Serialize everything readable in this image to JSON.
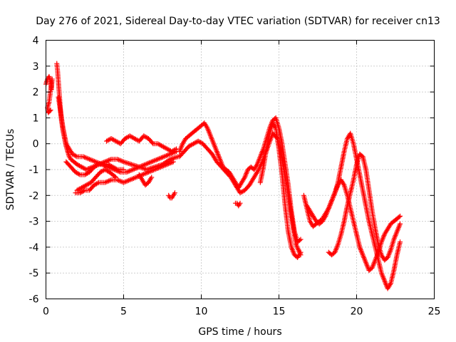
{
  "chart_data": {
    "type": "scatter",
    "title": "Day 276 of 2021, Sidereal Day-to-day VTEC variation (SDTVAR) for receiver cn13",
    "xlabel": "GPS time / hours",
    "ylabel": "SDTVAR / TECUs",
    "xlim": [
      0,
      25
    ],
    "ylim": [
      -6,
      4
    ],
    "xticks": [
      "0",
      "5",
      "10",
      "15",
      "20",
      "25"
    ],
    "yticks": [
      "-6",
      "-5",
      "-4",
      "-3",
      "-2",
      "-1",
      "0",
      "1",
      "2",
      "3",
      "4"
    ],
    "grid": true,
    "marker": "+",
    "color": "#ff0000",
    "series": [
      {
        "x": [
          0.0,
          0.1,
          0.2,
          0.3,
          0.35,
          0.4,
          0.2,
          0.1,
          0.15,
          0.3
        ],
        "y": [
          2.3,
          2.5,
          2.6,
          2.4,
          2.1,
          2.5,
          1.6,
          1.4,
          1.2,
          1.3
        ]
      },
      {
        "x": [
          0.7,
          0.75,
          0.8,
          0.85,
          0.9,
          0.95,
          1.0,
          1.1,
          1.2,
          1.3,
          1.4,
          1.5,
          1.6,
          1.8,
          2.0,
          2.3,
          2.6,
          3.0,
          3.4,
          3.8,
          4.2,
          4.6,
          5.0,
          5.5,
          6.0,
          6.5,
          7.0,
          7.5,
          8.0,
          8.5
        ],
        "y": [
          3.1,
          2.8,
          2.4,
          2.0,
          1.6,
          1.2,
          0.9,
          0.5,
          0.2,
          -0.1,
          -0.3,
          -0.5,
          -0.6,
          -0.7,
          -0.8,
          -0.9,
          -1.0,
          -0.9,
          -0.8,
          -0.7,
          -0.6,
          -0.6,
          -0.7,
          -0.8,
          -0.9,
          -1.0,
          -0.9,
          -0.8,
          -0.6,
          -0.5
        ]
      },
      {
        "x": [
          0.8,
          0.9,
          1.0,
          1.1,
          1.2,
          1.3,
          1.5,
          1.7,
          2.0,
          2.4,
          2.8,
          3.2,
          3.6,
          4.0,
          4.4,
          4.8,
          5.2,
          5.6,
          6.0,
          6.4,
          6.8,
          7.2,
          7.6,
          8.0,
          8.4
        ],
        "y": [
          1.8,
          1.4,
          1.0,
          0.6,
          0.3,
          0.0,
          -0.2,
          -0.4,
          -0.5,
          -0.5,
          -0.6,
          -0.7,
          -0.8,
          -0.9,
          -1.0,
          -1.1,
          -1.1,
          -1.0,
          -0.9,
          -0.8,
          -0.7,
          -0.6,
          -0.5,
          -0.4,
          -0.3
        ]
      },
      {
        "x": [
          1.3,
          1.6,
          1.9,
          2.2,
          2.5,
          2.8,
          3.1,
          3.4,
          3.7,
          4.0,
          4.3,
          4.6,
          5.0
        ],
        "y": [
          -0.7,
          -0.9,
          -1.1,
          -1.2,
          -1.2,
          -1.1,
          -0.9,
          -0.8,
          -0.8,
          -0.8,
          -0.9,
          -1.0,
          -1.0
        ]
      },
      {
        "x": [
          1.9,
          2.2,
          2.5,
          2.8,
          3.1,
          3.4,
          3.8,
          4.2,
          4.6,
          5.0,
          5.4,
          5.8,
          6.2,
          6.6,
          7.0,
          7.4,
          7.8,
          8.2
        ],
        "y": [
          -1.9,
          -1.9,
          -1.8,
          -1.8,
          -1.6,
          -1.5,
          -1.5,
          -1.4,
          -1.4,
          -1.5,
          -1.4,
          -1.3,
          -1.2,
          -1.1,
          -1.0,
          -0.9,
          -0.8,
          -0.7
        ]
      },
      {
        "x": [
          2.0,
          2.3,
          2.6,
          2.9,
          3.2,
          3.5,
          3.8,
          4.1,
          4.5
        ],
        "y": [
          -1.8,
          -1.7,
          -1.6,
          -1.5,
          -1.3,
          -1.1,
          -1.0,
          -1.1,
          -1.3
        ]
      },
      {
        "x": [
          3.9,
          4.2,
          4.5,
          4.8,
          5.1,
          5.4,
          5.7,
          6.0,
          6.3,
          6.6,
          6.9,
          7.2,
          7.5,
          7.8,
          8.1,
          8.4
        ],
        "y": [
          0.1,
          0.2,
          0.1,
          0.0,
          0.2,
          0.3,
          0.2,
          0.1,
          0.3,
          0.2,
          0.0,
          0.0,
          -0.1,
          -0.2,
          -0.3,
          -0.2
        ]
      },
      {
        "x": [
          6.0,
          6.2,
          6.4,
          6.6,
          6.8
        ],
        "y": [
          -1.2,
          -1.4,
          -1.6,
          -1.5,
          -1.3
        ]
      },
      {
        "x": [
          7.9,
          8.0,
          8.1,
          8.2,
          8.3
        ],
        "y": [
          -2.0,
          -2.1,
          -2.1,
          -2.0,
          -1.9
        ]
      },
      {
        "x": [
          8.6,
          8.8,
          9.0,
          9.2,
          9.4,
          9.6,
          9.8,
          10.0,
          10.2,
          10.4,
          10.6,
          10.8,
          11.0,
          11.2,
          11.4,
          11.6,
          11.8,
          12.0,
          12.2,
          12.4,
          12.6,
          12.8,
          13.0,
          13.2,
          13.4,
          13.6,
          13.8,
          14.0,
          14.2,
          14.4,
          14.6,
          14.8,
          15.0,
          15.2,
          15.4,
          15.6,
          15.8,
          16.0,
          16.2,
          16.4
        ],
        "y": [
          -0.3,
          0.0,
          0.2,
          0.3,
          0.4,
          0.5,
          0.6,
          0.7,
          0.8,
          0.6,
          0.3,
          0.0,
          -0.3,
          -0.6,
          -0.9,
          -1.0,
          -1.1,
          -1.3,
          -1.5,
          -1.7,
          -1.5,
          -1.3,
          -1.0,
          -0.9,
          -1.0,
          -0.8,
          -0.5,
          -0.2,
          0.2,
          0.6,
          0.9,
          1.0,
          0.6,
          0.0,
          -0.8,
          -1.6,
          -2.6,
          -3.4,
          -3.8,
          -3.7
        ]
      },
      {
        "x": [
          8.6,
          8.9,
          9.2,
          9.5,
          9.8,
          10.1,
          10.4,
          10.7,
          11.0,
          11.3,
          11.6,
          11.9,
          12.2,
          12.5,
          12.8,
          13.1,
          13.4,
          13.7,
          14.0,
          14.3,
          14.6,
          14.9,
          15.2,
          15.5,
          15.8,
          16.1,
          16.4
        ],
        "y": [
          -0.5,
          -0.3,
          -0.1,
          0.0,
          0.1,
          0.0,
          -0.2,
          -0.4,
          -0.7,
          -0.9,
          -1.1,
          -1.3,
          -1.6,
          -1.9,
          -1.8,
          -1.6,
          -1.3,
          -1.0,
          -0.6,
          -0.1,
          0.4,
          0.2,
          -0.6,
          -1.6,
          -2.8,
          -3.9,
          -4.3
        ]
      },
      {
        "x": [
          12.2,
          12.3,
          12.4,
          12.5
        ],
        "y": [
          -2.3,
          -2.3,
          -2.4,
          -2.3
        ]
      },
      {
        "x": [
          13.8,
          14.0,
          14.2,
          14.4,
          14.6,
          14.8,
          15.0,
          15.2,
          15.4,
          15.6,
          15.8,
          16.0,
          16.2,
          16.4
        ],
        "y": [
          -1.5,
          -0.9,
          -0.2,
          0.4,
          0.8,
          0.6,
          -0.2,
          -1.2,
          -2.4,
          -3.4,
          -4.0,
          -4.3,
          -4.4,
          -4.2
        ]
      },
      {
        "x": [
          16.6,
          16.8,
          17.0,
          17.2,
          17.4,
          17.6,
          17.8,
          18.0,
          18.2,
          18.4,
          18.6,
          18.8,
          19.0,
          19.2,
          19.4,
          19.6,
          19.8,
          20.0,
          20.2,
          20.4,
          20.6,
          20.8,
          21.0,
          21.2,
          21.4,
          21.6,
          21.8,
          22.0,
          22.2,
          22.4,
          22.6,
          22.8
        ],
        "y": [
          -2.0,
          -2.5,
          -3.0,
          -3.2,
          -3.1,
          -3.0,
          -2.9,
          -2.7,
          -2.5,
          -2.2,
          -1.9,
          -1.6,
          -1.4,
          -1.6,
          -2.0,
          -2.5,
          -3.0,
          -3.5,
          -4.0,
          -4.3,
          -4.6,
          -4.9,
          -4.8,
          -4.5,
          -4.2,
          -3.8,
          -3.5,
          -3.3,
          -3.1,
          -3.0,
          -2.9,
          -2.8
        ]
      },
      {
        "x": [
          16.8,
          17.0,
          17.2,
          17.4,
          17.6,
          17.8,
          18.0,
          18.2,
          18.4,
          18.6,
          18.8,
          19.0,
          19.2,
          19.4,
          19.6,
          19.8,
          20.0,
          20.2,
          20.4,
          20.6,
          20.8,
          21.0,
          21.2,
          21.4,
          21.6,
          21.8,
          22.0,
          22.2,
          22.4,
          22.6,
          22.8
        ],
        "y": [
          -2.4,
          -2.6,
          -2.8,
          -3.0,
          -3.1,
          -3.0,
          -2.8,
          -2.5,
          -2.2,
          -1.9,
          -1.5,
          -0.9,
          -0.3,
          0.2,
          0.4,
          0.0,
          -0.6,
          -1.2,
          -1.8,
          -2.4,
          -3.0,
          -3.5,
          -4.0,
          -4.5,
          -5.0,
          -5.3,
          -5.6,
          -5.4,
          -4.9,
          -4.3,
          -3.8
        ]
      },
      {
        "x": [
          18.2,
          18.4,
          18.6,
          18.8,
          19.0,
          19.2,
          19.4,
          19.6,
          19.8,
          20.0,
          20.2,
          20.4,
          20.6,
          20.8,
          21.0,
          21.2,
          21.4,
          21.6,
          21.8,
          22.0,
          22.2,
          22.4,
          22.6,
          22.8
        ],
        "y": [
          -4.2,
          -4.3,
          -4.2,
          -3.9,
          -3.5,
          -3.0,
          -2.4,
          -1.9,
          -1.4,
          -0.8,
          -0.4,
          -0.5,
          -1.0,
          -1.8,
          -2.6,
          -3.3,
          -3.9,
          -4.3,
          -4.5,
          -4.4,
          -4.1,
          -3.7,
          -3.4,
          -3.1
        ]
      }
    ]
  }
}
